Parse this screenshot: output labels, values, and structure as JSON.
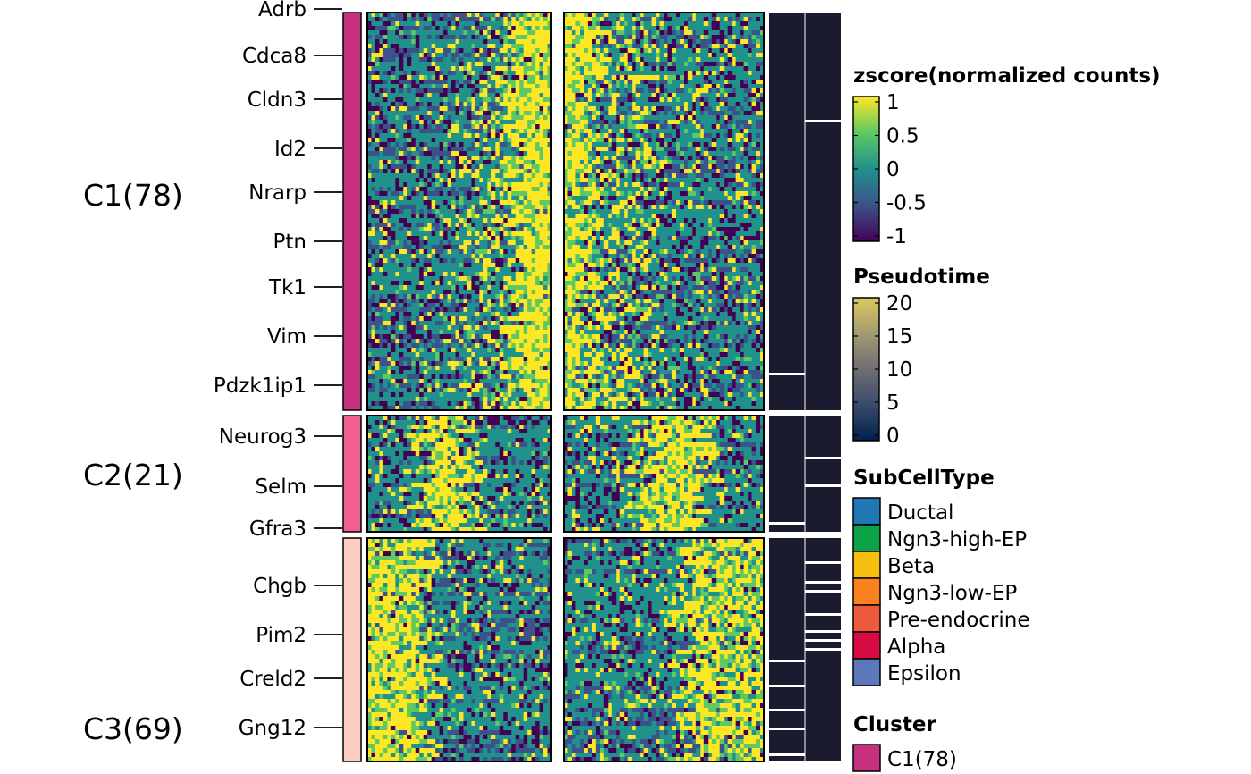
{
  "chart_data": {
    "type": "heatmap",
    "title": "",
    "xlabel": "",
    "ylabel": "",
    "row_groups": [
      {
        "name": "C1(78)",
        "color": "#c5307f",
        "pattern": "late",
        "genes": [
          "Adrb",
          "Cdca8",
          "Cldn3",
          "Id2",
          "Nrarp",
          "Ptn",
          "Tk1",
          "Vim",
          "Pdzk1ip1"
        ]
      },
      {
        "name": "C2(21)",
        "color": "#f25e93",
        "pattern": "mid",
        "genes": [
          "Neurog3",
          "Selm",
          "Gfra3"
        ]
      },
      {
        "name": "C3(69)",
        "color": "#fccdc0",
        "pattern": "early",
        "genes": [
          "Chgb",
          "Pim2",
          "Creld2",
          "Gng12"
        ]
      }
    ],
    "column_blocks": 2,
    "annotation_columns": 2,
    "colorscale": {
      "name": "viridis",
      "colors": [
        "#440154",
        "#3b528b",
        "#21918c",
        "#5ec962",
        "#fde725"
      ]
    },
    "legends": [
      {
        "title": "zscore(normalized counts)",
        "type": "gradient",
        "ticks": [
          "1",
          "0.5",
          "0",
          "-0.5",
          "-1"
        ],
        "colors": [
          "#fde725",
          "#5ec962",
          "#21918c",
          "#3b528b",
          "#440154"
        ]
      },
      {
        "title": "Pseudotime",
        "type": "gradient",
        "ticks": [
          "20",
          "15",
          "10",
          "5",
          "0"
        ],
        "colors": [
          "#dcc95e",
          "#a49a70",
          "#6f6e73",
          "#3a4a6b",
          "#00204d"
        ]
      },
      {
        "title": "SubCellType",
        "type": "discrete",
        "items": [
          {
            "label": "Ductal",
            "color": "#1f77b4"
          },
          {
            "label": "Ngn3-high-EP",
            "color": "#0ca348"
          },
          {
            "label": "Beta",
            "color": "#f5bf10"
          },
          {
            "label": "Ngn3-low-EP",
            "color": "#f9821e"
          },
          {
            "label": "Pre-endocrine",
            "color": "#ed5a3c"
          },
          {
            "label": "Alpha",
            "color": "#d80a44"
          },
          {
            "label": "Epsilon",
            "color": "#5c78bb"
          }
        ]
      },
      {
        "title": "Cluster",
        "type": "discrete",
        "items": [
          {
            "label": "C1(78)",
            "color": "#c5307f"
          }
        ]
      }
    ],
    "annotation_color": "#1b1b2f"
  }
}
